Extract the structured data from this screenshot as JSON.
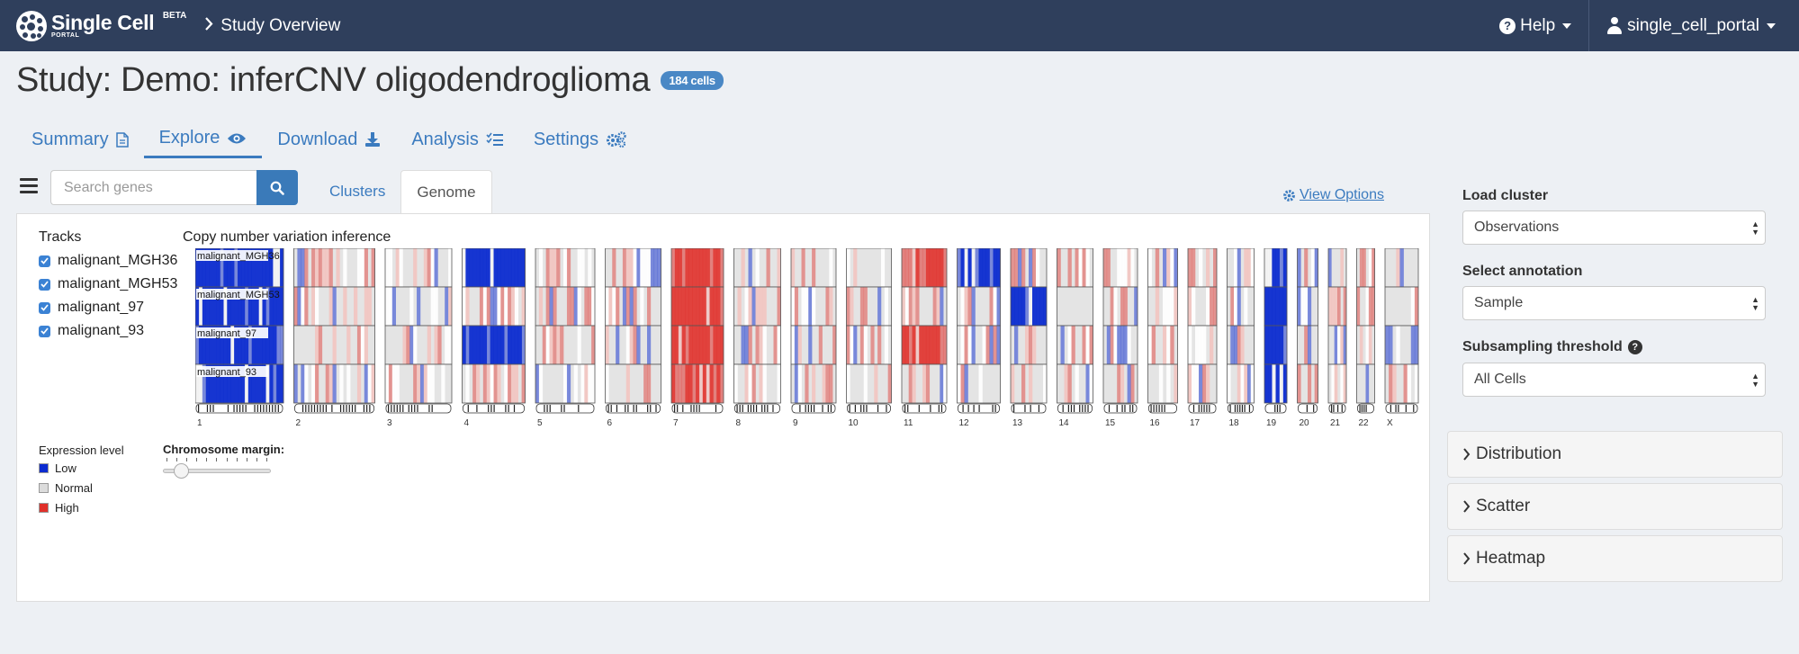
{
  "navbar": {
    "logo_text": "Single Cell",
    "logo_beta": "BETA",
    "logo_portal": "PORTAL",
    "breadcrumb": "Study Overview",
    "help_label": "Help",
    "user_label": "single_cell_portal"
  },
  "study": {
    "title": "Study: Demo: inferCNV oligodendroglioma",
    "cell_count": "184 cells"
  },
  "tabs": [
    {
      "label": "Summary",
      "icon": "file-icon"
    },
    {
      "label": "Explore",
      "icon": "eye-icon",
      "active": true
    },
    {
      "label": "Download",
      "icon": "download-icon"
    },
    {
      "label": "Analysis",
      "icon": "list-check-icon"
    },
    {
      "label": "Settings",
      "icon": "gears-icon"
    }
  ],
  "search": {
    "placeholder": "Search genes"
  },
  "subtabs": [
    {
      "label": "Clusters"
    },
    {
      "label": "Genome",
      "active": true
    }
  ],
  "view_options_label": "View Options",
  "tracks": {
    "title": "Tracks",
    "items": [
      "malignant_MGH36",
      "malignant_MGH53",
      "malignant_97",
      "malignant_93"
    ]
  },
  "plot_title": "Copy number variation inference",
  "legend": {
    "title": "Expression level",
    "items": [
      {
        "label": "Low",
        "color": "#0b2bd0"
      },
      {
        "label": "Normal",
        "color": "#dcdcdc"
      },
      {
        "label": "High",
        "color": "#e0302a"
      }
    ]
  },
  "chromosome_margin_label": "Chromosome margin:",
  "chromosomes": [
    "1",
    "2",
    "3",
    "4",
    "5",
    "6",
    "7",
    "8",
    "9",
    "10",
    "11",
    "12",
    "13",
    "14",
    "15",
    "16",
    "17",
    "18",
    "19",
    "20",
    "21",
    "22",
    "X"
  ],
  "sidebar": {
    "load_cluster_label": "Load cluster",
    "load_cluster_value": "Observations",
    "annotation_label": "Select annotation",
    "annotation_value": "Sample",
    "subsampling_label": "Subsampling threshold",
    "subsampling_value": "All Cells",
    "panels": [
      "Distribution",
      "Scatter",
      "Heatmap"
    ]
  },
  "colors": {
    "navbar": "#2f3f5c",
    "link": "#3b7bbf",
    "low": "#0b2bd0",
    "normal": "#dcdcdc",
    "high": "#e0302a"
  }
}
